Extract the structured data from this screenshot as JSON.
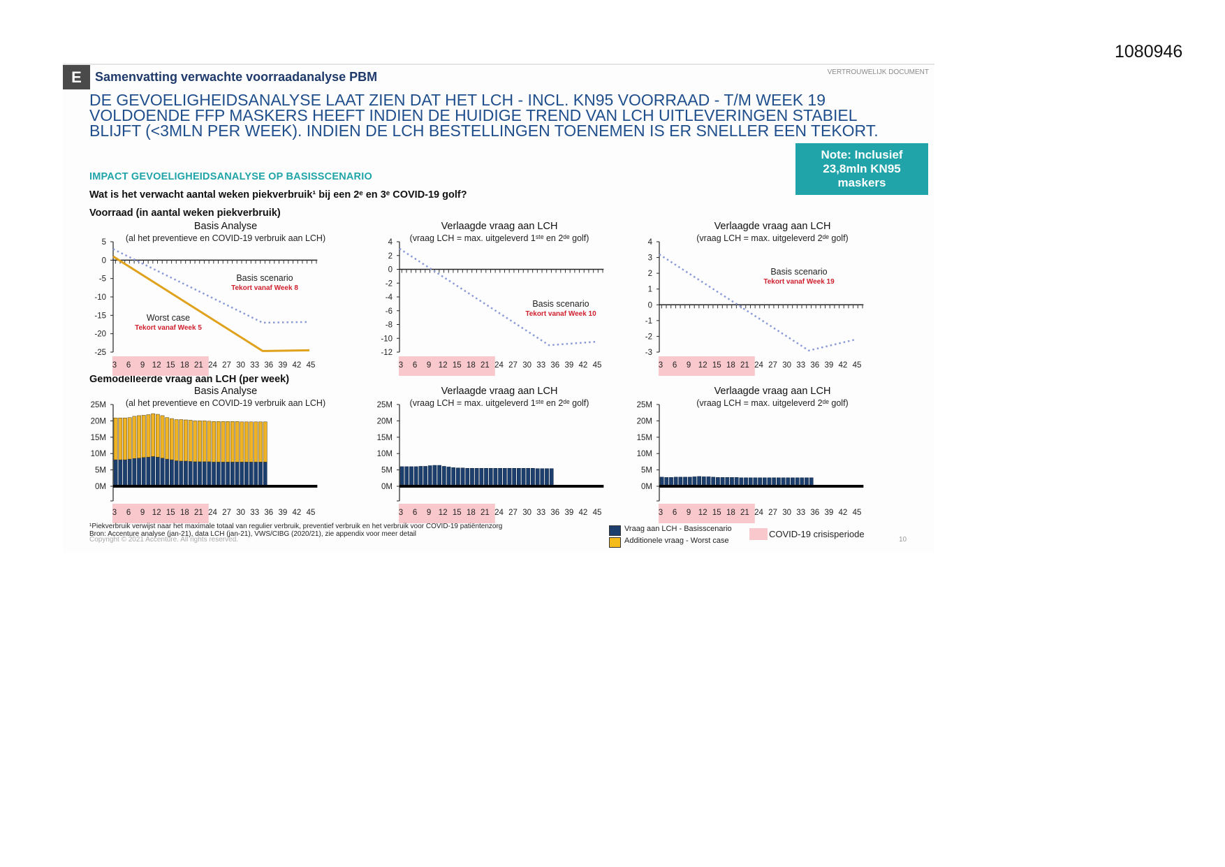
{
  "document_id": "1080946",
  "header": {
    "section_letter": "E",
    "title": "Samenvatting verwachte voorraadanalyse PBM",
    "confidential": "VERTROUWELIJK DOCUMENT"
  },
  "headline": [
    "DE GEVOELIGHEIDSANALYSE LAAT ZIEN DAT HET LCH - INCL. KN95 VOORRAAD - T/M WEEK 19",
    "VOLDOENDE FFP MASKERS HEEFT INDIEN DE HUIDIGE TREND VAN LCH UITLEVERINGEN STABIEL",
    "BLIJFT (<3MLN PER WEEK). INDIEN DE LCH BESTELLINGEN TOENEMEN IS ER SNELLER EEN TEKORT."
  ],
  "note": [
    "Note: Inclusief",
    "23,8mln KN95",
    "maskers"
  ],
  "section_heading": "IMPACT GEVOELIGHEIDSANALYSE OP BASISSCENARIO",
  "question": "Wat is het verwacht aantal weken piekverbruik¹ bij een 2ᵉ en 3ᵉ COVID-19 golf?",
  "row_labels": {
    "stock": "Voorraad (in aantal weken piekverbruik)",
    "demand": "Gemodelleerde vraag aan LCH (per week)"
  },
  "footnotes": {
    "note1": "¹Piekverbruik verwijst naar het maximale totaal van regulier verbruik, preventief verbruik en het verbruik voor COVID-19 patiëntenzorg",
    "source": "Bron: Accenture analyse (jan-21), data LCH (jan-21), VWS/CIBG (2020/21), zie appendix voor meer detail",
    "copyright": "Copyright © 2021 Accenture. All rights reserved."
  },
  "legend": {
    "base": "Vraag aan LCH - Basisscenario",
    "additional": "Additionele vraag - Worst case",
    "crisis": "COVID-19 crisisperiode"
  },
  "page_number": "10",
  "colors": {
    "base": "#1c3f6e",
    "additional": "#f0b323",
    "worst_line": "#e0a21c",
    "basis_line": "#8a9ad6",
    "crisis": "#f8c8cc",
    "tekort": "#d0202e",
    "teal": "#20a4a9"
  },
  "chart_data": [
    {
      "type": "line",
      "title": "Basis Analyse",
      "subtitle": "(al het preventieve en COVID-19 verbruik aan LCH)",
      "x_ticks": [
        "3",
        "6",
        "9",
        "12",
        "15",
        "18",
        "21",
        "24",
        "27",
        "30",
        "33",
        "36",
        "39",
        "42",
        "45"
      ],
      "ylim": [
        -25,
        5
      ],
      "y_ticks": [
        "5",
        "0",
        "-5",
        "-10",
        "-15",
        "-20",
        "-25"
      ],
      "crisis_period": [
        3,
        23
      ],
      "series": [
        {
          "name": "Basis scenario",
          "style": "dotted",
          "x": [
            3,
            35,
            45
          ],
          "y": [
            3,
            -17,
            -16.8
          ]
        },
        {
          "name": "Worst case",
          "style": "solid",
          "x": [
            3,
            35,
            45
          ],
          "y": [
            1,
            -24.7,
            -24.5
          ]
        }
      ],
      "annotations": [
        {
          "label": "Basis scenario",
          "note": "Tekort vanaf Week 8"
        },
        {
          "label": "Worst case",
          "note": "Tekort vanaf Week 5"
        }
      ]
    },
    {
      "type": "line",
      "title": "Verlaagde vraag aan LCH",
      "subtitle": "(vraag LCH = max. uitgeleverd 1ˢᵗᵉ en 2ᵈᵉ golf)",
      "x_ticks": [
        "3",
        "6",
        "9",
        "12",
        "15",
        "18",
        "21",
        "24",
        "27",
        "30",
        "33",
        "36",
        "39",
        "42",
        "45"
      ],
      "ylim": [
        -12,
        4
      ],
      "y_ticks": [
        "4",
        "2",
        "0",
        "-2",
        "-4",
        "-6",
        "-8",
        "-10",
        "-12"
      ],
      "crisis_period": [
        3,
        23
      ],
      "series": [
        {
          "name": "Basis scenario",
          "style": "dotted",
          "x": [
            3,
            35,
            45
          ],
          "y": [
            3,
            -11,
            -10.5
          ]
        }
      ],
      "annotations": [
        {
          "label": "Basis scenario",
          "note": "Tekort vanaf Week 10"
        }
      ]
    },
    {
      "type": "line",
      "title": "Verlaagde vraag aan LCH",
      "subtitle": "(vraag LCH = max. uitgeleverd 2ᵈᵉ golf)",
      "x_ticks": [
        "3",
        "6",
        "9",
        "12",
        "15",
        "18",
        "21",
        "24",
        "27",
        "30",
        "33",
        "36",
        "39",
        "42",
        "45"
      ],
      "ylim": [
        -3,
        4
      ],
      "y_ticks": [
        "4",
        "3",
        "2",
        "1",
        "0",
        "-1",
        "-2",
        "-3"
      ],
      "crisis_period": [
        3,
        23
      ],
      "series": [
        {
          "name": "Basis scenario",
          "style": "dotted",
          "x": [
            3,
            35,
            45
          ],
          "y": [
            3.2,
            -2.9,
            -2.2
          ]
        }
      ],
      "annotations": [
        {
          "label": "Basis scenario",
          "note": "Tekort vanaf Week 19"
        }
      ]
    },
    {
      "type": "bar",
      "stacked": true,
      "title": "Basis Analyse",
      "subtitle": "(al het preventieve en COVID-19 verbruik aan LCH)",
      "x_ticks": [
        "3",
        "6",
        "9",
        "12",
        "15",
        "18",
        "21",
        "24",
        "27",
        "30",
        "33",
        "36",
        "39",
        "42",
        "45"
      ],
      "ylim": [
        0,
        25
      ],
      "y_ticks": [
        "25M",
        "20M",
        "15M",
        "10M",
        "5M",
        "0M"
      ],
      "crisis_period": [
        3,
        23
      ],
      "weeks_from": 3,
      "series": [
        {
          "name": "Vraag aan LCH - Basisscenario",
          "values": [
            8.1,
            8.1,
            8.1,
            8.3,
            8.5,
            8.6,
            8.8,
            8.9,
            9.1,
            8.9,
            8.6,
            8.3,
            8.1,
            7.8,
            7.7,
            7.7,
            7.6,
            7.5,
            7.5,
            7.5,
            7.5,
            7.4,
            7.4,
            7.4,
            7.4,
            7.4,
            7.4,
            7.4,
            7.4,
            7.4,
            7.4,
            7.4,
            7.4
          ]
        },
        {
          "name": "Additionele vraag - Worst case",
          "values": [
            12.8,
            12.8,
            12.8,
            12.7,
            12.9,
            13.0,
            12.9,
            13.0,
            13.1,
            13.1,
            13.0,
            12.7,
            12.6,
            12.6,
            12.7,
            12.6,
            12.6,
            12.5,
            12.5,
            12.5,
            12.4,
            12.4,
            12.4,
            12.4,
            12.4,
            12.4,
            12.4,
            12.3,
            12.3,
            12.3,
            12.3,
            12.3,
            12.3
          ]
        }
      ]
    },
    {
      "type": "bar",
      "title": "Verlaagde vraag aan LCH",
      "subtitle": "(vraag LCH = max. uitgeleverd 1ˢᵗᵉ en 2ᵈᵉ golf)",
      "x_ticks": [
        "3",
        "6",
        "9",
        "12",
        "15",
        "18",
        "21",
        "24",
        "27",
        "30",
        "33",
        "36",
        "39",
        "42",
        "45"
      ],
      "ylim": [
        0,
        25
      ],
      "y_ticks": [
        "25M",
        "20M",
        "15M",
        "10M",
        "5M",
        "0M"
      ],
      "crisis_period": [
        3,
        23
      ],
      "weeks_from": 3,
      "series": [
        {
          "name": "Vraag aan LCH - Basisscenario",
          "values": [
            6.0,
            6.0,
            6.0,
            6.0,
            6.1,
            6.1,
            6.3,
            6.4,
            6.4,
            6.1,
            5.9,
            5.7,
            5.6,
            5.6,
            5.5,
            5.5,
            5.5,
            5.5,
            5.5,
            5.5,
            5.5,
            5.5,
            5.5,
            5.5,
            5.5,
            5.5,
            5.5,
            5.5,
            5.5,
            5.4,
            5.4,
            5.4,
            5.4
          ]
        }
      ]
    },
    {
      "type": "bar",
      "title": "Verlaagde vraag aan LCH",
      "subtitle": "(vraag LCH = max. uitgeleverd 2ᵈᵉ golf)",
      "x_ticks": [
        "3",
        "6",
        "9",
        "12",
        "15",
        "18",
        "21",
        "24",
        "27",
        "30",
        "33",
        "36",
        "39",
        "42",
        "45"
      ],
      "ylim": [
        0,
        25
      ],
      "y_ticks": [
        "25M",
        "20M",
        "15M",
        "10M",
        "5M",
        "0M"
      ],
      "crisis_period": [
        3,
        23
      ],
      "weeks_from": 3,
      "series": [
        {
          "name": "Vraag aan LCH - Basisscenario",
          "values": [
            2.8,
            2.7,
            2.7,
            2.8,
            2.8,
            2.8,
            2.8,
            2.9,
            3.0,
            2.9,
            2.9,
            2.8,
            2.7,
            2.7,
            2.7,
            2.7,
            2.7,
            2.6,
            2.6,
            2.6,
            2.6,
            2.6,
            2.6,
            2.6,
            2.6,
            2.6,
            2.6,
            2.6,
            2.6,
            2.6,
            2.6,
            2.6,
            2.6
          ]
        }
      ]
    }
  ]
}
